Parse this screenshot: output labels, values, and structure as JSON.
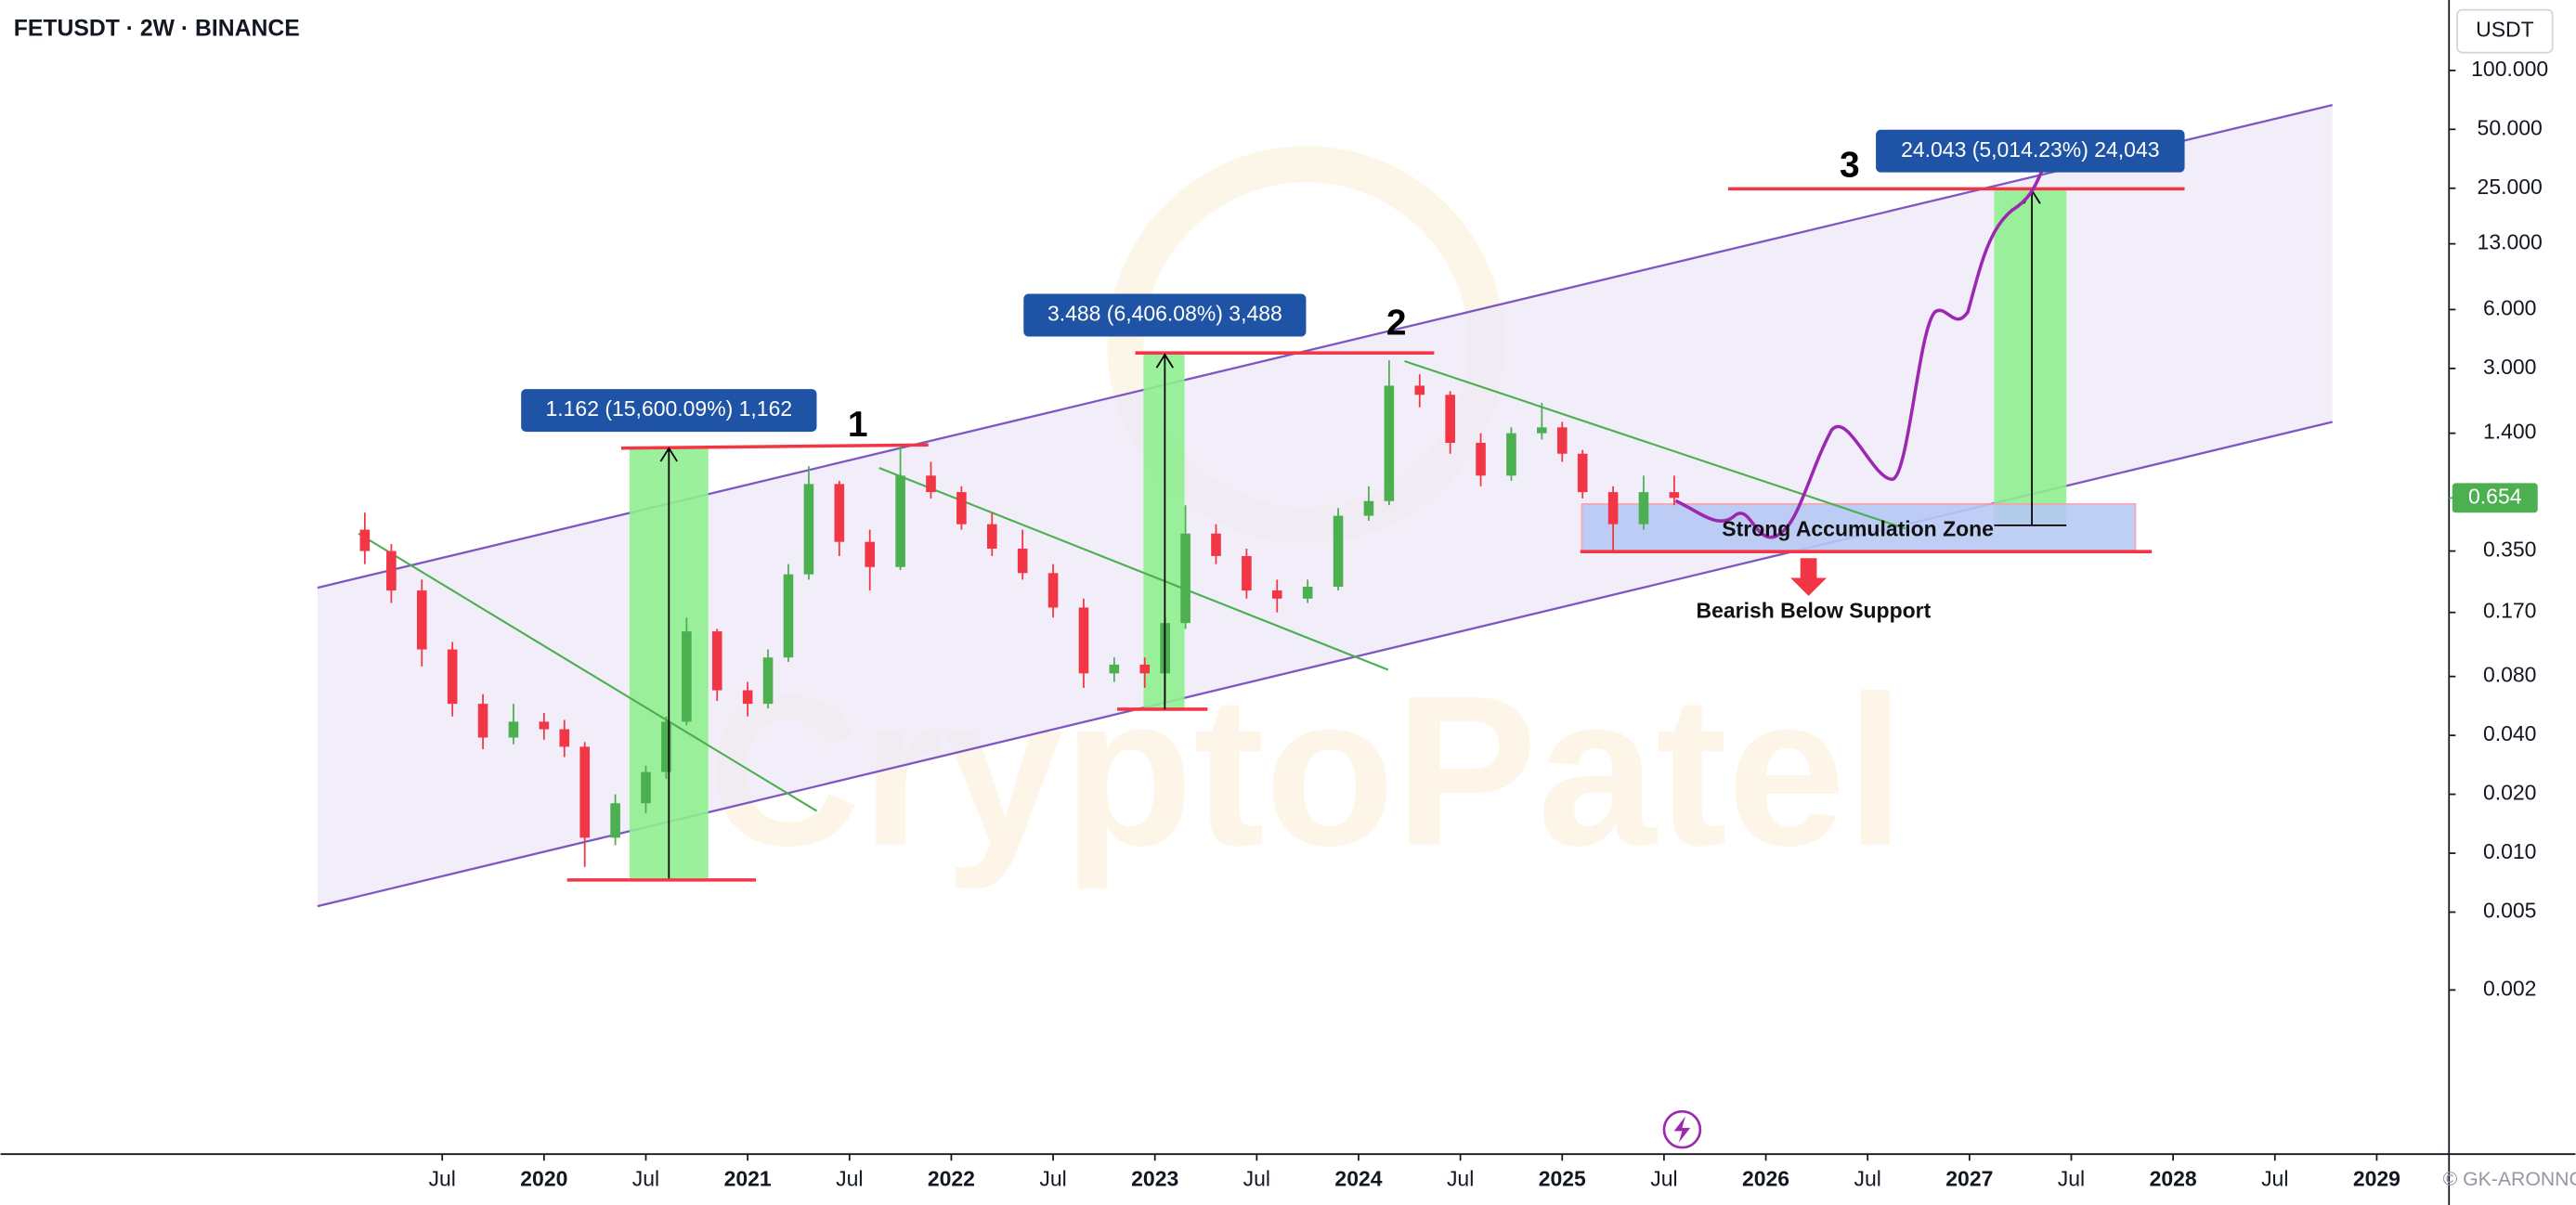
{
  "chart_data": {
    "type": "candlestick",
    "title": "FETUSDT · 2W · BINANCE",
    "currency": "USDT",
    "log_scale": true,
    "up_color": "#4caf50",
    "down_color": "#f23645",
    "xlim": [
      2017.331,
      2029.355
    ],
    "ylim": [
      0.00029,
      229
    ],
    "xticks": [
      {
        "value": 2019.5,
        "label": "Jul"
      },
      2020,
      {
        "value": 2020.5,
        "label": "Jul"
      },
      2021,
      {
        "value": 2021.5,
        "label": "Jul"
      },
      2022,
      {
        "value": 2022.5,
        "label": "Jul"
      },
      2023,
      {
        "value": 2023.5,
        "label": "Jul"
      },
      2024,
      {
        "value": 2024.5,
        "label": "Jul"
      },
      2025,
      {
        "value": 2025.5,
        "label": "Jul"
      },
      2026,
      {
        "value": 2026.5,
        "label": "Jul"
      },
      2027,
      {
        "value": 2027.5,
        "label": "Jul"
      },
      2028,
      {
        "value": 2028.5,
        "label": "Jul"
      },
      2029
    ],
    "yticks": [
      {
        "value": 100,
        "label": "100.000"
      },
      {
        "value": 50,
        "label": "50.000"
      },
      {
        "value": 25,
        "label": "25.000"
      },
      {
        "value": 13,
        "label": "13.000"
      },
      {
        "value": 6,
        "label": "6.000"
      },
      {
        "value": 3,
        "label": "3.000"
      },
      {
        "value": 1.4,
        "label": "1.400"
      },
      {
        "value": 0.35,
        "label": "0.350"
      },
      {
        "value": 0.17,
        "label": "0.170"
      },
      {
        "value": 0.08,
        "label": "0.080"
      },
      {
        "value": 0.04,
        "label": "0.040"
      },
      {
        "value": 0.02,
        "label": "0.020"
      },
      {
        "value": 0.01,
        "label": "0.010"
      },
      {
        "value": 0.005,
        "label": "0.005"
      },
      {
        "value": 0.002,
        "label": "0.002"
      }
    ],
    "last_price": 0.654,
    "x": [
      2019.12,
      2019.25,
      2019.4,
      2019.55,
      2019.7,
      2019.85,
      2020.0,
      2020.1,
      2020.2,
      2020.35,
      2020.5,
      2020.6,
      2020.7,
      2020.85,
      2021.0,
      2021.1,
      2021.2,
      2021.3,
      2021.45,
      2021.6,
      2021.75,
      2021.9,
      2022.05,
      2022.2,
      2022.35,
      2022.5,
      2022.65,
      2022.8,
      2022.95,
      2023.05,
      2023.15,
      2023.3,
      2023.45,
      2023.6,
      2023.75,
      2023.9,
      2024.05,
      2024.15,
      2024.3,
      2024.45,
      2024.6,
      2024.75,
      2024.9,
      2025.0,
      2025.1,
      2025.25,
      2025.4,
      2025.55
    ],
    "open": [
      0.45,
      0.35,
      0.22,
      0.11,
      0.058,
      0.039,
      0.047,
      0.043,
      0.035,
      0.012,
      0.018,
      0.026,
      0.047,
      0.136,
      0.068,
      0.058,
      0.1,
      0.266,
      0.77,
      0.39,
      0.29,
      0.85,
      0.7,
      0.48,
      0.36,
      0.27,
      0.18,
      0.083,
      0.092,
      0.083,
      0.15,
      0.43,
      0.33,
      0.22,
      0.2,
      0.23,
      0.53,
      0.63,
      2.45,
      2.2,
      1.25,
      0.85,
      1.4,
      1.5,
      1.1,
      0.7,
      0.48,
      0.7
    ],
    "high": [
      0.55,
      0.38,
      0.25,
      0.12,
      0.065,
      0.058,
      0.052,
      0.048,
      0.037,
      0.02,
      0.028,
      0.05,
      0.16,
      0.14,
      0.075,
      0.11,
      0.3,
      0.95,
      0.8,
      0.45,
      1.2,
      1.0,
      0.75,
      0.55,
      0.45,
      0.3,
      0.2,
      0.1,
      0.1,
      0.16,
      0.6,
      0.48,
      0.36,
      0.25,
      0.25,
      0.58,
      0.75,
      3.3,
      2.8,
      2.3,
      1.4,
      1.5,
      2.0,
      1.6,
      1.15,
      0.75,
      0.85,
      0.85
    ],
    "low": [
      0.3,
      0.19,
      0.09,
      0.05,
      0.034,
      0.036,
      0.038,
      0.031,
      0.0085,
      0.011,
      0.016,
      0.024,
      0.045,
      0.06,
      0.05,
      0.055,
      0.095,
      0.25,
      0.33,
      0.22,
      0.28,
      0.65,
      0.45,
      0.33,
      0.25,
      0.16,
      0.07,
      0.075,
      0.07,
      0.06,
      0.14,
      0.3,
      0.2,
      0.17,
      0.19,
      0.22,
      0.5,
      0.6,
      1.9,
      1.1,
      0.75,
      0.8,
      1.3,
      1.0,
      0.65,
      0.35,
      0.45,
      0.6
    ],
    "close": [
      0.35,
      0.22,
      0.11,
      0.058,
      0.039,
      0.047,
      0.043,
      0.035,
      0.012,
      0.018,
      0.026,
      0.047,
      0.136,
      0.068,
      0.058,
      0.1,
      0.266,
      0.77,
      0.39,
      0.29,
      0.85,
      0.7,
      0.48,
      0.36,
      0.27,
      0.18,
      0.083,
      0.092,
      0.083,
      0.15,
      0.43,
      0.33,
      0.22,
      0.2,
      0.23,
      0.53,
      0.63,
      2.45,
      2.2,
      1.25,
      0.85,
      1.4,
      1.5,
      1.1,
      0.7,
      0.48,
      0.7,
      0.654
    ],
    "measure_labels": [
      "1.162 (15,600.09%) 1,162",
      "3.488 (6,406.08%) 3,488",
      "24.043 (5,014.23%) 24,043"
    ],
    "wave_labels": [
      "1",
      "2",
      "3"
    ],
    "zone_label": "Strong Accumulation Zone",
    "support_label": "Bearish Below Support",
    "watermark": "CryptoPatel",
    "watermark_credit": "© GK-ARONNC"
  }
}
